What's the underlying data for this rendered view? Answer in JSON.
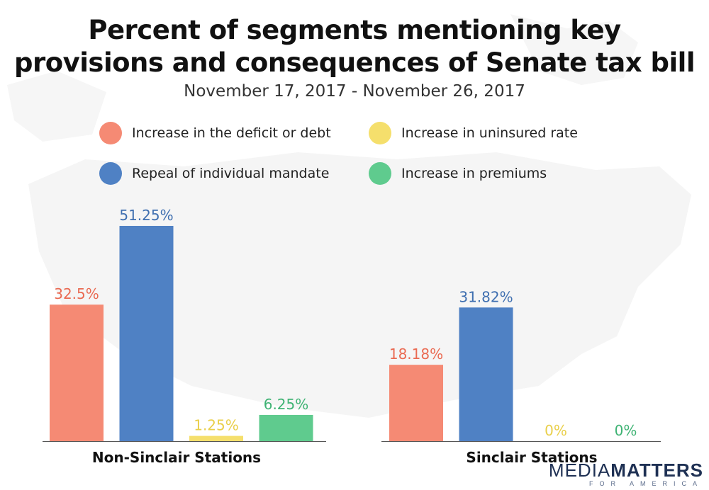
{
  "title_line1": "Percent of segments mentioning key",
  "title_line2": "provisions and consequences of Senate tax bill",
  "subtitle": "November 17, 2017 - November 26, 2017",
  "legend": [
    {
      "label": "Increase in the deficit or debt",
      "color": "#f58a74"
    },
    {
      "label": "Increase in uninsured rate",
      "color": "#f5df6c"
    },
    {
      "label": "Repeal of individual mandate",
      "color": "#4f81c4"
    },
    {
      "label": "Increase in premiums",
      "color": "#5fcb8e"
    }
  ],
  "brand": {
    "word1": "MEDIA",
    "word2": "MATTERS",
    "tagline": "FOR AMERICA"
  },
  "chart_data": {
    "type": "bar",
    "series_names": [
      "Increase in the deficit or debt",
      "Repeal of individual mandate",
      "Increase in uninsured rate",
      "Increase in premiums"
    ],
    "series_colors": [
      "#f58a74",
      "#4f81c4",
      "#f5df6c",
      "#5fcb8e"
    ],
    "label_colors": [
      "#ea6a52",
      "#3f6fb0",
      "#e9cf4a",
      "#3fb374"
    ],
    "groups": [
      {
        "name": "Non-Sinclair Stations",
        "values": [
          32.5,
          51.25,
          1.25,
          6.25
        ],
        "labels": [
          "32.5%",
          "51.25%",
          "1.25%",
          "6.25%"
        ]
      },
      {
        "name": "Sinclair Stations",
        "values": [
          18.18,
          31.82,
          0,
          0
        ],
        "labels": [
          "18.18%",
          "31.82%",
          "0%",
          "0%"
        ]
      }
    ],
    "ylim": [
      0,
      51.25
    ],
    "grid": false
  }
}
